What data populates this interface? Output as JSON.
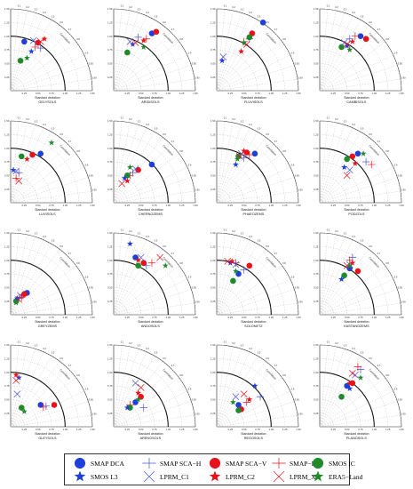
{
  "colors": {
    "blue": "#1f3fdb",
    "red": "#e8121a",
    "green": "#1e8a2a",
    "lightgreen": "#2e9b3a"
  },
  "legend": [
    {
      "key": "smap_dca",
      "label": "SMAP DCA",
      "marker": "circle",
      "color": "#1f3fdb"
    },
    {
      "key": "smap_sca_h",
      "label": "SMAP SCA−H",
      "marker": "plus",
      "color": "#4b56d6"
    },
    {
      "key": "smap_sca_v",
      "label": "SMAP SCA−V",
      "marker": "circle",
      "color": "#e8121a"
    },
    {
      "key": "smap_ib",
      "label": "SMAP−IB",
      "marker": "plus",
      "color": "#e8121a"
    },
    {
      "key": "smos_ic",
      "label": "SMOS IC",
      "marker": "circle",
      "color": "#1e8a2a"
    },
    {
      "key": "smos_l3",
      "label": "SMOS L3",
      "marker": "star",
      "color": "#1f3fdb"
    },
    {
      "key": "lprm_c1",
      "label": "LPRM_C1",
      "marker": "x",
      "color": "#4b56d6"
    },
    {
      "key": "lprm_c2",
      "label": "LPRM_C2",
      "marker": "star",
      "color": "#e8121a"
    },
    {
      "key": "lprm_x",
      "label": "LPRM_X",
      "marker": "x",
      "color": "#e8121a"
    },
    {
      "key": "era5_land",
      "label": "ERA5−Land",
      "marker": "star",
      "color": "#1e8a2a"
    }
  ],
  "chart_data": [
    {
      "type": "scatter",
      "title": "GELYSOLS",
      "xlabel": "Standard deviation",
      "arc_label": "Correlation",
      "points": {
        "smap_dca": [
          0.25,
          0.9
        ],
        "smap_sca_h": [
          0.55,
          0.78
        ],
        "smap_sca_v": [
          0.5,
          0.88
        ],
        "smap_ib": [
          0.45,
          0.8
        ],
        "smos_ic": [
          0.18,
          0.55
        ],
        "smos_l3": [
          0.38,
          0.72
        ],
        "lprm_c1": [
          0.42,
          0.92
        ],
        "lprm_c2": [
          0.62,
          0.95
        ],
        "lprm_x": [
          0.55,
          0.9
        ],
        "era5_land": [
          0.3,
          0.6
        ]
      }
    },
    {
      "type": "scatter",
      "title": "ARIDISOLS",
      "xlabel": "Standard deviation",
      "arc_label": "Correlation",
      "points": {
        "smap_dca": [
          0.7,
          1.05
        ],
        "smap_sca_h": [
          0.45,
          0.98
        ],
        "smap_sca_v": [
          0.78,
          1.08
        ],
        "smap_ib": [
          0.6,
          0.95
        ],
        "smos_ic": [
          0.25,
          0.7
        ],
        "smos_l3": [
          0.35,
          0.85
        ],
        "lprm_c1": [
          0.3,
          0.9
        ],
        "lprm_c2": [
          0.55,
          0.92
        ],
        "lprm_x": [
          0.4,
          0.88
        ],
        "era5_land": [
          0.55,
          0.8
        ]
      }
    },
    {
      "type": "scatter",
      "title": "FLUVISOLS",
      "xlabel": "Standard deviation",
      "arc_label": "Correlation",
      "points": {
        "smap_dca": [
          0.85,
          1.25
        ],
        "smap_sca_h": [
          0.6,
          0.95
        ],
        "smap_sca_v": [
          0.65,
          1.05
        ],
        "smap_ib": [
          0.5,
          0.9
        ],
        "smos_ic": [
          0.6,
          0.98
        ],
        "smos_l3": [
          0.1,
          0.55
        ],
        "lprm_c1": [
          0.12,
          0.62
        ],
        "lprm_c2": [
          0.45,
          0.72
        ],
        "lprm_x": [
          0.55,
          0.85
        ],
        "era5_land": [
          0.5,
          0.88
        ]
      }
    },
    {
      "type": "scatter",
      "title": "CAMBISOLS",
      "xlabel": "Standard deviation",
      "arc_label": "Correlation",
      "points": {
        "smap_dca": [
          0.75,
          1.0
        ],
        "smap_sca_h": [
          0.55,
          0.95
        ],
        "smap_sca_v": [
          0.85,
          0.95
        ],
        "smap_ib": [
          0.65,
          1.0
        ],
        "smos_ic": [
          0.4,
          0.8
        ],
        "smos_l3": [
          0.5,
          0.82
        ],
        "lprm_c1": [
          0.45,
          0.88
        ],
        "lprm_c2": [
          0.6,
          0.9
        ],
        "lprm_x": [
          0.5,
          0.85
        ],
        "era5_land": [
          0.55,
          0.75
        ]
      }
    },
    {
      "type": "scatter",
      "title": "LUVISOLS",
      "xlabel": "Standard deviation",
      "arc_label": "Correlation",
      "points": {
        "smap_dca": [
          0.55,
          0.9
        ],
        "smap_sca_h": [
          0.15,
          0.55
        ],
        "smap_sca_v": [
          0.4,
          0.88
        ],
        "smap_ib": [
          0.1,
          0.45
        ],
        "smos_ic": [
          0.2,
          0.85
        ],
        "smos_l3": [
          0.05,
          0.6
        ],
        "lprm_c1": [
          0.1,
          0.58
        ],
        "lprm_c2": [
          0.3,
          0.8
        ],
        "lprm_x": [
          0.15,
          0.4
        ],
        "era5_land": [
          0.75,
          1.1
        ]
      }
    },
    {
      "type": "scatter",
      "title": "CHERNOZEMS",
      "xlabel": "Standard deviation",
      "arc_label": "Correlation",
      "points": {
        "smap_dca": [
          0.7,
          0.7
        ],
        "smap_sca_h": [
          0.35,
          0.55
        ],
        "smap_sca_v": [
          0.45,
          0.6
        ],
        "smap_ib": [
          0.3,
          0.5
        ],
        "smos_ic": [
          0.25,
          0.5
        ],
        "smos_l3": [
          0.2,
          0.45
        ],
        "lprm_c1": [
          0.4,
          0.62
        ],
        "lprm_c2": [
          0.25,
          0.4
        ],
        "lprm_x": [
          0.15,
          0.35
        ],
        "era5_land": [
          0.3,
          0.65
        ]
      }
    },
    {
      "type": "scatter",
      "title": "PHAEOZEMS",
      "xlabel": "Standard deviation",
      "arc_label": "Correlation",
      "points": {
        "smap_dca": [
          0.7,
          0.9
        ],
        "smap_sca_h": [
          0.5,
          0.82
        ],
        "smap_sca_v": [
          0.55,
          0.92
        ],
        "smap_ib": [
          0.6,
          0.88
        ],
        "smos_ic": [
          0.4,
          0.85
        ],
        "smos_l3": [
          0.35,
          0.7
        ],
        "lprm_c1": [
          0.45,
          0.9
        ],
        "lprm_c2": [
          0.5,
          0.95
        ],
        "lprm_x": [
          0.42,
          0.85
        ],
        "era5_land": [
          0.38,
          0.8
        ]
      }
    },
    {
      "type": "scatter",
      "title": "PODZOLS",
      "xlabel": "Standard deviation",
      "arc_label": "Correlation",
      "points": {
        "smap_dca": [
          0.7,
          0.9
        ],
        "smap_sca_h": [
          0.85,
          0.75
        ],
        "smap_sca_v": [
          0.6,
          0.85
        ],
        "smap_ib": [
          0.95,
          0.7
        ],
        "smos_ic": [
          0.5,
          0.8
        ],
        "smos_l3": [
          0.45,
          0.65
        ],
        "lprm_c1": [
          0.55,
          0.6
        ],
        "lprm_c2": [
          0.65,
          0.72
        ],
        "lprm_x": [
          0.5,
          0.5
        ],
        "era5_land": [
          0.8,
          0.9
        ]
      }
    },
    {
      "type": "scatter",
      "title": "GREYZEMS",
      "xlabel": "Standard deviation",
      "arc_label": "Correlation",
      "points": {
        "smap_dca": [
          0.3,
          0.4
        ],
        "smap_sca_h": [
          0.15,
          0.3
        ],
        "smap_sca_v": [
          0.25,
          0.38
        ],
        "smap_ib": [
          0.2,
          0.32
        ],
        "smos_ic": [
          0.1,
          0.25
        ],
        "smos_l3": [
          0.12,
          0.3
        ],
        "lprm_c1": [
          0.18,
          0.35
        ],
        "lprm_c2": [
          0.22,
          0.36
        ],
        "lprm_x": [
          0.15,
          0.28
        ],
        "era5_land": [
          0.1,
          0.22
        ]
      }
    },
    {
      "type": "scatter",
      "title": "ANDOSOLS",
      "xlabel": "Standard deviation",
      "arc_label": "Correlation",
      "points": {
        "smap_dca": [
          0.4,
          1.05
        ],
        "smap_sca_h": [
          0.6,
          0.9
        ],
        "smap_sca_v": [
          0.55,
          0.95
        ],
        "smap_ib": [
          0.7,
          0.95
        ],
        "smos_ic": [
          0.45,
          0.9
        ],
        "smos_l3": [
          0.3,
          1.3
        ],
        "lprm_c1": [
          0.5,
          1.05
        ],
        "lprm_c2": [
          0.45,
          1.0
        ],
        "lprm_x": [
          0.85,
          1.05
        ],
        "era5_land": [
          0.95,
          0.9
        ]
      }
    },
    {
      "type": "scatter",
      "title": "SOLONETZ",
      "xlabel": "Standard deviation",
      "arc_label": "Correlation",
      "points": {
        "smap_dca": [
          0.4,
          0.75
        ],
        "smap_sca_h": [
          0.5,
          0.82
        ],
        "smap_sca_v": [
          0.6,
          0.9
        ],
        "smap_ib": [
          0.35,
          0.95
        ],
        "smos_ic": [
          0.3,
          0.62
        ],
        "smos_l3": [
          0.25,
          0.95
        ],
        "lprm_c1": [
          0.35,
          0.92
        ],
        "lprm_c2": [
          0.28,
          0.98
        ],
        "lprm_x": [
          0.2,
          0.98
        ],
        "era5_land": [
          0.35,
          0.8
        ]
      }
    },
    {
      "type": "scatter",
      "title": "KASTANOZEMS",
      "xlabel": "Standard deviation",
      "arc_label": "Correlation",
      "points": {
        "smap_dca": [
          0.55,
          0.85
        ],
        "smap_sca_h": [
          0.6,
          1.05
        ],
        "smap_sca_v": [
          0.7,
          0.8
        ],
        "smap_ib": [
          0.55,
          1.0
        ],
        "smos_ic": [
          0.45,
          0.72
        ],
        "smos_l3": [
          0.4,
          0.65
        ],
        "lprm_c1": [
          0.55,
          0.92
        ],
        "lprm_c2": [
          0.6,
          0.95
        ],
        "lprm_x": [
          0.5,
          0.9
        ],
        "era5_land": [
          0.55,
          0.9
        ]
      }
    },
    {
      "type": "scatter",
      "title": "GLEYSOLS",
      "xlabel": "Standard deviation",
      "arc_label": "Correlation",
      "points": {
        "smap_dca": [
          0.55,
          0.4
        ],
        "smap_sca_h": [
          0.65,
          0.38
        ],
        "smap_sca_v": [
          0.8,
          0.4
        ],
        "smap_ib": [
          0.6,
          0.36
        ],
        "smos_ic": [
          0.2,
          0.35
        ],
        "smos_l3": [
          0.15,
          0.9
        ],
        "lprm_c1": [
          0.12,
          0.6
        ],
        "lprm_c2": [
          0.1,
          0.95
        ],
        "lprm_x": [
          0.1,
          0.85
        ],
        "era5_land": [
          0.25,
          0.28
        ]
      }
    },
    {
      "type": "scatter",
      "title": "ARENOSOLS",
      "xlabel": "Standard deviation",
      "arc_label": "Correlation",
      "points": {
        "smap_dca": [
          0.4,
          0.45
        ],
        "smap_sca_h": [
          0.55,
          0.35
        ],
        "smap_sca_v": [
          0.5,
          0.55
        ],
        "smap_ib": [
          0.3,
          0.4
        ],
        "smos_ic": [
          0.3,
          0.35
        ],
        "smos_l3": [
          0.25,
          0.35
        ],
        "lprm_c1": [
          0.4,
          0.8
        ],
        "lprm_c2": [
          0.45,
          0.62
        ],
        "lprm_x": [
          0.5,
          0.72
        ],
        "era5_land": [
          0.45,
          0.5
        ]
      }
    },
    {
      "type": "scatter",
      "title": "REGOSOLS",
      "xlabel": "Standard deviation",
      "arc_label": "Correlation",
      "points": {
        "smap_dca": [
          0.4,
          0.4
        ],
        "smap_sca_h": [
          0.8,
          0.55
        ],
        "smap_sca_v": [
          0.45,
          0.32
        ],
        "smap_ib": [
          0.55,
          0.45
        ],
        "smos_ic": [
          0.4,
          0.3
        ],
        "smos_l3": [
          0.7,
          0.75
        ],
        "lprm_c1": [
          0.35,
          0.55
        ],
        "lprm_c2": [
          0.6,
          0.5
        ],
        "lprm_x": [
          0.5,
          0.6
        ],
        "era5_land": [
          0.3,
          0.45
        ]
      }
    },
    {
      "type": "scatter",
      "title": "PLANOSOLS",
      "xlabel": "Standard deviation",
      "arc_label": "Correlation",
      "points": {
        "smap_dca": [
          0.5,
          0.75
        ],
        "smap_sca_h": [
          0.75,
          1.05
        ],
        "smap_sca_v": [
          0.6,
          0.8
        ],
        "smap_ib": [
          0.7,
          1.1
        ],
        "smos_ic": [
          0.4,
          0.55
        ],
        "smos_l3": [
          0.55,
          0.7
        ],
        "lprm_c1": [
          0.65,
          0.95
        ],
        "lprm_c2": [
          0.55,
          0.8
        ],
        "lprm_x": [
          0.6,
          0.98
        ],
        "era5_land": [
          0.75,
          0.9
        ]
      }
    }
  ],
  "axis": {
    "max": 1.5,
    "ticks": [
      "0.25",
      "0.50",
      "0.75",
      "1.00",
      "1.25",
      "1.50"
    ],
    "corr_ticks": [
      "0.1",
      "0.2",
      "0.3",
      "0.4",
      "0.5",
      "0.6",
      "0.7",
      "0.8",
      "0.9",
      "0.95",
      "0.99"
    ]
  }
}
